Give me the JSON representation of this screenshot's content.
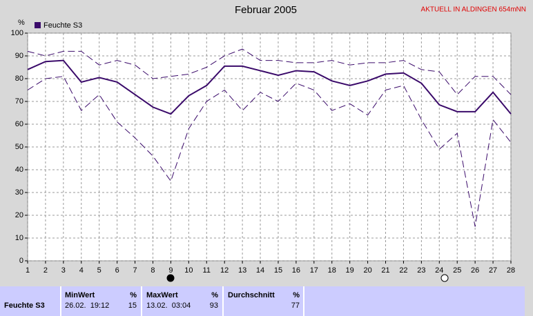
{
  "chart_data": {
    "type": "line",
    "title": "Februar 2005",
    "subtitle": "AKTUELL IN ALDINGEN 654mNN",
    "y_label": "%",
    "x": [
      1,
      2,
      3,
      4,
      5,
      6,
      7,
      8,
      9,
      10,
      11,
      12,
      13,
      14,
      15,
      16,
      17,
      18,
      19,
      20,
      21,
      22,
      23,
      24,
      25,
      26,
      27,
      28
    ],
    "series": [
      {
        "name": "Feuchte S3",
        "color": "#3a0a6a",
        "style": "solid",
        "values": [
          84,
          87.5,
          88,
          78.5,
          80.5,
          78.5,
          73,
          67.5,
          64.5,
          72.5,
          77,
          85.5,
          85.5,
          83.5,
          81.5,
          83.5,
          83,
          79,
          77,
          79,
          82,
          82.5,
          78,
          68.5,
          65.5,
          65.5,
          74,
          64.5
        ]
      },
      {
        "color": "#3a0a6a",
        "style": "dashed",
        "values": [
          92,
          90,
          92,
          92,
          86,
          88,
          86,
          80,
          81,
          82,
          85,
          90,
          93,
          88,
          88,
          87,
          87,
          88,
          86,
          87,
          87,
          88,
          84,
          83,
          73,
          81,
          81,
          73
        ]
      },
      {
        "color": "#3a0a6a",
        "style": "dashed",
        "values": [
          75,
          80,
          81,
          66,
          73,
          61,
          54,
          46,
          35,
          58,
          70,
          75,
          66,
          74,
          70,
          78,
          75,
          66,
          69,
          64,
          75,
          77,
          62,
          49,
          56,
          15,
          62,
          52
        ]
      }
    ],
    "xlim": [
      1,
      28
    ],
    "xticks": [
      1,
      2,
      3,
      4,
      5,
      6,
      7,
      8,
      9,
      10,
      11,
      12,
      13,
      14,
      15,
      16,
      17,
      18,
      19,
      20,
      21,
      22,
      23,
      24,
      25,
      26,
      27,
      28
    ],
    "ylim": [
      0,
      100
    ],
    "yticks": [
      0,
      10,
      20,
      30,
      40,
      50,
      60,
      70,
      80,
      90,
      100
    ],
    "grid": true
  },
  "stats_table": {
    "row_label": "Feuchte S3",
    "columns": [
      {
        "header": "MinWert",
        "unit": "%",
        "time": "26.02.  19:12",
        "value": "15"
      },
      {
        "header": "MaxWert",
        "unit": "%",
        "time": "13.02.  03:04",
        "value": "93"
      },
      {
        "header": "Durchschnitt",
        "unit": "%",
        "value": "77"
      }
    ]
  }
}
